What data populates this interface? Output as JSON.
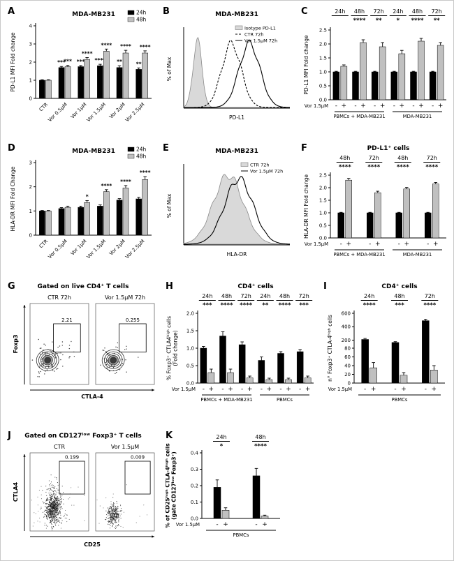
{
  "chart_data": [
    {
      "panel": "A",
      "type": "grouped_bar",
      "title": "MDA-MB231",
      "ylabel": "PD-L1 MFI Fold change",
      "ylim": [
        0,
        4
      ],
      "yticks": [
        "0",
        "1",
        "2",
        "3",
        "4"
      ],
      "categories": [
        "CTR",
        "Vor 0.5µM",
        "Vor 1µM",
        "Vor 1.5µM",
        "Vor 2µM",
        "Vor 2.5µM"
      ],
      "series": [
        {
          "name": "24h",
          "color": "#000000",
          "values": [
            1.0,
            1.7,
            1.75,
            1.8,
            1.7,
            1.6
          ],
          "errors": [
            0.03,
            0.06,
            0.06,
            0.08,
            0.1,
            0.08
          ],
          "stars": [
            "",
            "***",
            "***",
            "****",
            "**",
            "**"
          ]
        },
        {
          "name": "48h",
          "color": "#c0c0c0",
          "values": [
            1.0,
            1.75,
            2.15,
            2.6,
            2.5,
            2.5
          ],
          "errors": [
            0.03,
            0.07,
            0.1,
            0.12,
            0.15,
            0.12
          ],
          "stars": [
            "",
            "***",
            "****",
            "****",
            "****",
            "****"
          ]
        }
      ]
    },
    {
      "panel": "B",
      "type": "histogram",
      "title": "MDA-MB231",
      "xlabel": "PD-L1",
      "ylabel": "% of Max",
      "curves": [
        {
          "label": "Isotype PD-L1",
          "style": "fill",
          "peak": 0.13,
          "width": 0.06,
          "height": 0.92
        },
        {
          "label": "CTR 72h",
          "style": "dash",
          "peak": 0.45,
          "width": 0.13,
          "height": 0.88
        },
        {
          "label": "Vor 1.5µM 72h",
          "style": "solid",
          "peak": 0.62,
          "width": 0.14,
          "height": 0.88
        }
      ]
    },
    {
      "panel": "C",
      "type": "paired_bar",
      "ylabel": "PD-L1 MFI Fold change",
      "vor_label": "Vor 1.5µM",
      "ylim": [
        0,
        2.5
      ],
      "yticks": [
        "0.0",
        "0.5",
        "1.0",
        "1.5",
        "2.0",
        "2.5"
      ],
      "pairs": [
        {
          "time": "24h",
          "stars": "",
          "minus": 1.0,
          "minusErr": 0.02,
          "plus": 1.2,
          "plusErr": 0.05
        },
        {
          "time": "48h",
          "stars": "****",
          "minus": 1.0,
          "minusErr": 0.02,
          "plus": 2.05,
          "plusErr": 0.1
        },
        {
          "time": "72h",
          "stars": "**",
          "minus": 1.0,
          "minusErr": 0.02,
          "plus": 1.9,
          "plusErr": 0.15
        },
        {
          "time": "24h",
          "stars": "*",
          "minus": 1.0,
          "minusErr": 0.02,
          "plus": 1.65,
          "plusErr": 0.12
        },
        {
          "time": "48h",
          "stars": "****",
          "minus": 1.0,
          "minusErr": 0.02,
          "plus": 2.1,
          "plusErr": 0.1
        },
        {
          "time": "72h",
          "stars": "**",
          "minus": 1.0,
          "minusErr": 0.02,
          "plus": 1.95,
          "plusErr": 0.1
        }
      ],
      "groups": [
        {
          "label": "PBMCs + MDA-MB231",
          "from": 0,
          "to": 2
        },
        {
          "label": "MDA-MB231",
          "from": 3,
          "to": 5
        }
      ]
    },
    {
      "panel": "D",
      "type": "grouped_bar",
      "title": "MDA-MB231",
      "ylabel": "HLA-DR MFI Fold Change",
      "ylim": [
        0,
        3
      ],
      "yticks": [
        "0",
        "1",
        "2",
        "3"
      ],
      "categories": [
        "CTR",
        "Vor 0.5µM",
        "Vor 1µM",
        "Vor 1.5µM",
        "Vor 2µM",
        "Vor 2.5µM"
      ],
      "series": [
        {
          "name": "24h",
          "color": "#000000",
          "values": [
            1.0,
            1.1,
            1.15,
            1.2,
            1.45,
            1.5
          ],
          "errors": [
            0.02,
            0.04,
            0.05,
            0.05,
            0.06,
            0.06
          ],
          "stars": [
            "",
            "",
            "",
            "",
            "",
            ""
          ]
        },
        {
          "name": "48h",
          "color": "#c0c0c0",
          "values": [
            1.0,
            1.15,
            1.35,
            1.8,
            1.95,
            2.3
          ],
          "errors": [
            0.02,
            0.05,
            0.08,
            0.08,
            0.1,
            0.12
          ],
          "stars": [
            "",
            "",
            "*",
            "****",
            "****",
            "****"
          ]
        }
      ]
    },
    {
      "panel": "E",
      "type": "histogram",
      "title": "MDA-MB231",
      "xlabel": "HLA-DR",
      "ylabel": "% of Max",
      "curves": [
        {
          "label": "CTR 72h",
          "style": "fill",
          "peak": 0.42,
          "width": 0.2,
          "height": 0.95
        },
        {
          "label": "Vor 1.5µM 72h",
          "style": "solid",
          "peak": 0.52,
          "width": 0.19,
          "height": 0.9
        }
      ]
    },
    {
      "panel": "F",
      "type": "paired_bar",
      "title": "PD-L1⁺ cells",
      "ylabel": "HLA-DR MFI Fold change",
      "vor_label": "Vor 1.5µM",
      "ylim": [
        0,
        2.5
      ],
      "yticks": [
        "0.0",
        "0.5",
        "1.0",
        "1.5",
        "2.0",
        "2.5"
      ],
      "pairs": [
        {
          "time": "48h",
          "stars": "****",
          "minus": 1.0,
          "minusErr": 0.02,
          "plus": 2.3,
          "plusErr": 0.07
        },
        {
          "time": "72h",
          "stars": "****",
          "minus": 1.0,
          "minusErr": 0.02,
          "plus": 1.8,
          "plusErr": 0.06
        },
        {
          "time": "48h",
          "stars": "****",
          "minus": 1.0,
          "minusErr": 0.02,
          "plus": 1.95,
          "plusErr": 0.06
        },
        {
          "time": "72h",
          "stars": "****",
          "minus": 1.0,
          "minusErr": 0.02,
          "plus": 2.15,
          "plusErr": 0.06
        }
      ],
      "groups": [
        {
          "label": "PBMCs + MDA-MB231",
          "from": 0,
          "to": 1
        },
        {
          "label": "MDA-MB231",
          "from": 2,
          "to": 3
        }
      ]
    },
    {
      "panel": "G",
      "type": "contour_pair",
      "title": "Gated on live CD4⁺ T cells",
      "xlabel": "CTLA-4",
      "ylabel": "Foxp3",
      "plots": [
        {
          "title": "CTR 72h",
          "gate_value": "2.21"
        },
        {
          "title": "Vor 1.5µM 72h",
          "gate_value": "0.255"
        }
      ]
    },
    {
      "panel": "H",
      "type": "paired_bar",
      "title": "CD4⁺ cells",
      "ylabel": [
        "% Foxp3⁺ CTLA4ʰⁱᵍʰ cells",
        "(Fold change)"
      ],
      "vor_label": "Vor 1.5µM",
      "ylim": [
        0,
        2
      ],
      "yticks": [
        "0.0",
        "0.5",
        "1.0",
        "1.5",
        "2.0"
      ],
      "pairs": [
        {
          "time": "24h",
          "stars": "***",
          "minus": 1.0,
          "minusErr": 0.05,
          "plus": 0.3,
          "plusErr": 0.1
        },
        {
          "time": "48h",
          "stars": "****",
          "minus": 1.35,
          "minusErr": 0.12,
          "plus": 0.3,
          "plusErr": 0.1
        },
        {
          "time": "72h",
          "stars": "****",
          "minus": 1.1,
          "minusErr": 0.08,
          "plus": 0.15,
          "plusErr": 0.05
        },
        {
          "time": "24h",
          "stars": "**",
          "minus": 0.65,
          "minusErr": 0.1,
          "plus": 0.1,
          "plusErr": 0.04
        },
        {
          "time": "48h",
          "stars": "****",
          "minus": 0.85,
          "minusErr": 0.05,
          "plus": 0.1,
          "plusErr": 0.04
        },
        {
          "time": "72h",
          "stars": "***",
          "minus": 0.9,
          "minusErr": 0.06,
          "plus": 0.15,
          "plusErr": 0.05
        }
      ],
      "groups": [
        {
          "label": "PBMCs + MDA-MB231",
          "from": 0,
          "to": 2
        },
        {
          "label": "PBMCs",
          "from": 3,
          "to": 5
        }
      ]
    },
    {
      "panel": "I",
      "type": "paired_bar",
      "title": "CD4⁺ cells",
      "ylabel": "n° Foxp3⁺ CTLA-4ʰⁱᵍʰ cells",
      "vor_label": "Vor 1.5µM",
      "yticks": [
        "0",
        "20",
        "40",
        "60",
        "80",
        "200",
        "400",
        "600"
      ],
      "ybreak": [
        {
          "from": 0,
          "to": 80,
          "frac": 0.5
        },
        {
          "from": 80,
          "to": 600,
          "frac": 0.5
        }
      ],
      "pairs": [
        {
          "time": "24h",
          "stars": "****",
          "minus": 210,
          "minusErr": 15,
          "plus": 35,
          "plusErr": 12
        },
        {
          "time": "48h",
          "stars": "***",
          "minus": 165,
          "minusErr": 12,
          "plus": 18,
          "plusErr": 6
        },
        {
          "time": "72h",
          "stars": "****",
          "minus": 490,
          "minusErr": 20,
          "plus": 30,
          "plusErr": 10
        }
      ],
      "groups": [
        {
          "label": "PBMCs",
          "from": 0,
          "to": 2
        }
      ]
    },
    {
      "panel": "J",
      "type": "scatter_pair",
      "title": "Gated on CD127ˡᵒʷ Foxp3⁺ T cells",
      "xlabel": "CD25",
      "ylabel": "CTLA4",
      "plots": [
        {
          "title": "CTR",
          "gate_value": "0.199"
        },
        {
          "title": "Vor 1.5µM",
          "gate_value": "0.009"
        }
      ]
    },
    {
      "panel": "K",
      "type": "paired_bar",
      "ylabel": [
        "% of CD25ʰⁱᵍʰ CTLA-4ʰⁱᵍʰ cells",
        "(gate CD127ˡᵒʷ Foxp3⁺)"
      ],
      "ylabelBold": true,
      "vor_label": "Vor 1.5µM",
      "ylim": [
        0,
        0.4
      ],
      "yticks": [
        "0.0",
        "0.1",
        "0.2",
        "0.3",
        "0.4"
      ],
      "pairs": [
        {
          "time": "24h",
          "stars": "*",
          "minus": 0.19,
          "minusErr": 0.045,
          "plus": 0.05,
          "plusErr": 0.015
        },
        {
          "time": "48h",
          "stars": "****",
          "minus": 0.26,
          "minusErr": 0.045,
          "plus": 0.015,
          "plusErr": 0.005
        }
      ],
      "groups": [
        {
          "label": "PBMCs",
          "from": 0,
          "to": 1
        }
      ]
    }
  ]
}
